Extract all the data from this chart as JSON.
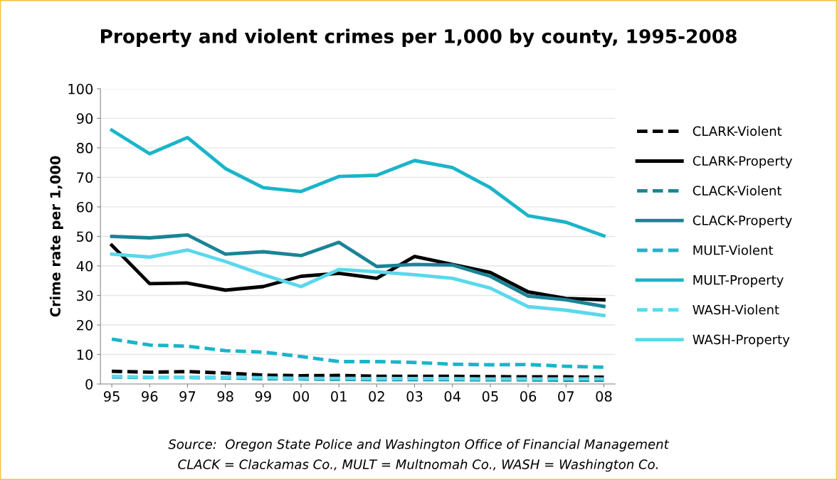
{
  "chart_data": {
    "type": "line",
    "title": "Property and violent crimes per 1,000 by county, 1995-2008",
    "ylabel": "Crime rate per 1,000",
    "categories": [
      "95",
      "96",
      "97",
      "98",
      "99",
      "00",
      "01",
      "02",
      "03",
      "04",
      "05",
      "06",
      "07",
      "08"
    ],
    "ylim": [
      0,
      100
    ],
    "yticks": [
      0,
      10,
      20,
      30,
      40,
      50,
      60,
      70,
      80,
      90,
      100
    ],
    "grid": "y",
    "legend": "right",
    "marker": "none",
    "series": [
      {
        "name": "CLARK-Violent",
        "color": "#000000",
        "line_style": "dashed",
        "values": [
          4.3,
          4.0,
          4.2,
          3.7,
          3.0,
          2.8,
          2.9,
          2.6,
          2.6,
          2.6,
          2.5,
          2.4,
          2.4,
          2.3
        ]
      },
      {
        "name": "CLARK-Property",
        "color": "#000000",
        "line_style": "solid",
        "values": [
          47,
          34,
          34.2,
          31.8,
          33,
          36.5,
          37.5,
          35.8,
          43.2,
          40.5,
          37.8,
          31.2,
          29,
          28.5
        ]
      },
      {
        "name": "CLACK-Violent",
        "color": "#1b8396",
        "line_style": "dashed",
        "values": [
          2.4,
          2.2,
          2.2,
          2.1,
          1.8,
          1.7,
          1.6,
          1.5,
          1.5,
          1.5,
          1.4,
          1.4,
          1.3,
          1.3
        ]
      },
      {
        "name": "CLACK-Property",
        "color": "#1b8396",
        "line_style": "solid",
        "values": [
          50,
          49.5,
          50.5,
          44,
          44.8,
          43.5,
          48,
          39.8,
          40.5,
          40.3,
          36.5,
          29.8,
          28.5,
          26.3
        ]
      },
      {
        "name": "MULT-Violent",
        "color": "#1ab5c9",
        "line_style": "dashed",
        "values": [
          15.2,
          13.2,
          12.8,
          11.3,
          10.8,
          9.3,
          7.6,
          7.6,
          7.3,
          6.7,
          6.5,
          6.6,
          6.0,
          5.7
        ]
      },
      {
        "name": "MULT-Property",
        "color": "#1ab5c9",
        "line_style": "solid",
        "values": [
          86,
          78,
          83.5,
          73,
          66.5,
          65.2,
          70.3,
          70.7,
          75.7,
          73.3,
          66.5,
          57,
          54.8,
          50.2
        ]
      },
      {
        "name": "WASH-Violent",
        "color": "#5ad8ec",
        "line_style": "dashed",
        "values": [
          2.6,
          2.3,
          2.3,
          2.3,
          2.1,
          1.9,
          1.9,
          1.8,
          1.8,
          1.8,
          1.7,
          1.7,
          1.7,
          1.7
        ]
      },
      {
        "name": "WASH-Property",
        "color": "#5ad8ec",
        "line_style": "solid",
        "values": [
          44,
          43,
          45.4,
          41.5,
          37,
          33,
          38.8,
          38,
          37,
          35.8,
          32.5,
          26.2,
          25,
          23.2
        ]
      }
    ],
    "annotations": [
      "Source:  Oregon State Police and Washington Office of Financial Management",
      "CLACK = Clackamas Co., MULT = Multnomah Co., WASH = Washington Co."
    ]
  }
}
